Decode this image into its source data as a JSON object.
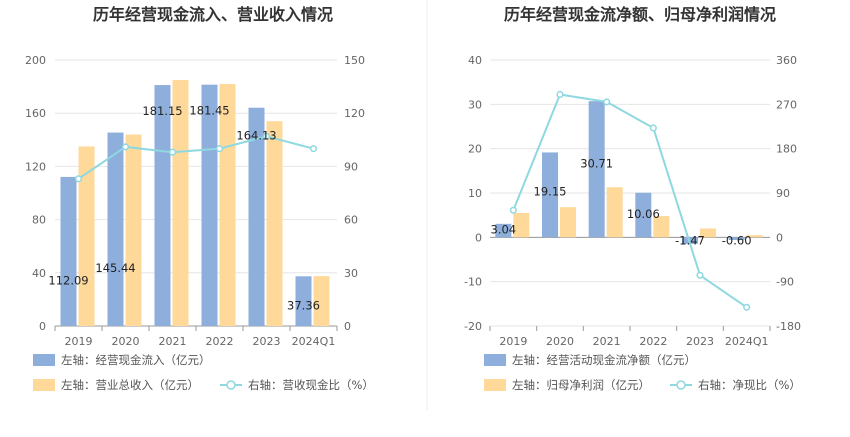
{
  "colors": {
    "blue": "#8EAEDC",
    "orange": "#FFD99A",
    "line": "#8ED8E0",
    "grid": "#E6E6E6",
    "divider": "#EEEEEE"
  },
  "chart_data": [
    {
      "type": "bar",
      "title": "历年经营现金流入、营业收入情况",
      "categories": [
        "2019",
        "2020",
        "2021",
        "2022",
        "2023",
        "2024Q1"
      ],
      "y_left_ticks": [
        "0",
        "40",
        "80",
        "120",
        "160",
        "200"
      ],
      "y_right_ticks": [
        "0",
        "30",
        "60",
        "90",
        "120",
        "150"
      ],
      "ylim_left": [
        0,
        200
      ],
      "ylim_right": [
        0,
        150
      ],
      "grid": true,
      "legend_position": "bottom-left",
      "series": [
        {
          "name": "左轴：经营现金流入（亿元）",
          "type": "bar",
          "axis": "left",
          "values": [
            112.09,
            145.44,
            181.15,
            181.45,
            164.13,
            37.36
          ],
          "labels": [
            "112.09",
            "145.44",
            "181.15",
            "181.45",
            "164.13",
            "37.36"
          ]
        },
        {
          "name": "左轴：营业总收入（亿元）",
          "type": "bar",
          "axis": "left",
          "values": [
            135,
            144,
            185,
            182,
            154,
            37.5
          ]
        },
        {
          "name": "右轴：营收现金比（%）",
          "type": "line",
          "axis": "right",
          "values": [
            83,
            101,
            98,
            100,
            107,
            100
          ]
        }
      ]
    },
    {
      "type": "bar",
      "title": "历年经营现金流净额、归母净利润情况",
      "categories": [
        "2019",
        "2020",
        "2021",
        "2022",
        "2023",
        "2024Q1"
      ],
      "y_left_ticks": [
        "-20",
        "-10",
        "0",
        "10",
        "20",
        "30",
        "40"
      ],
      "y_right_ticks": [
        "-180",
        "-90",
        "0",
        "90",
        "180",
        "270",
        "360"
      ],
      "ylim_left": [
        -20,
        40
      ],
      "ylim_right": [
        -180,
        360
      ],
      "grid": true,
      "legend_position": "bottom-left",
      "series": [
        {
          "name": "左轴：经营活动现金流净额（亿元）",
          "type": "bar",
          "axis": "left",
          "values": [
            3.04,
            19.15,
            30.71,
            10.06,
            -1.47,
            -0.6
          ],
          "labels": [
            "3.04",
            "19.15",
            "30.71",
            "10.06",
            "-1.47",
            "-0.60"
          ]
        },
        {
          "name": "左轴：归母净利润（亿元）",
          "type": "bar",
          "axis": "left",
          "values": [
            5.5,
            6.8,
            11.3,
            4.8,
            2.0,
            0.5
          ]
        },
        {
          "name": "右轴：净现比（%）",
          "type": "line",
          "axis": "right",
          "values": [
            55,
            290,
            275,
            222,
            -77,
            -142
          ]
        }
      ]
    }
  ]
}
